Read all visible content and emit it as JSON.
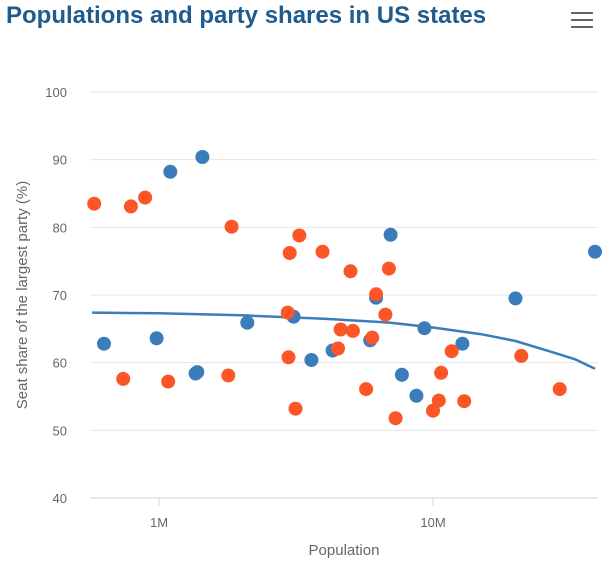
{
  "chart": {
    "title": "Populations and party shares in US states"
  },
  "toolbar": {
    "menu_icon": "hamburger-menu-icon"
  },
  "chart_data": {
    "type": "scatter",
    "title": "Populations and party shares in US states",
    "xlabel": "Population",
    "ylabel": "Seat share of the largest party (%)",
    "x_scale": "log",
    "xlim": [
      560000,
      40000000
    ],
    "ylim": [
      40,
      100
    ],
    "x_ticks": [
      1000000,
      10000000
    ],
    "x_tick_labels": [
      "1M",
      "10M"
    ],
    "y_ticks": [
      40,
      50,
      60,
      70,
      80,
      90,
      100
    ],
    "grid": "horizontal",
    "colors": {
      "blue": "#3a7dba",
      "orange": "#fc5626",
      "trend": "#3a7dba"
    },
    "series": [
      {
        "color": "#3a7dba",
        "points": [
          {
            "x": 630000,
            "y": 62.8
          },
          {
            "x": 980000,
            "y": 63.6
          },
          {
            "x": 1100000,
            "y": 88.2
          },
          {
            "x": 1360000,
            "y": 58.4
          },
          {
            "x": 1380000,
            "y": 58.6
          },
          {
            "x": 1440000,
            "y": 90.4
          },
          {
            "x": 2100000,
            "y": 65.9
          },
          {
            "x": 3100000,
            "y": 66.8
          },
          {
            "x": 3600000,
            "y": 60.4
          },
          {
            "x": 4300000,
            "y": 61.8
          },
          {
            "x": 5900000,
            "y": 63.3
          },
          {
            "x": 6200000,
            "y": 69.6
          },
          {
            "x": 7000000,
            "y": 78.9
          },
          {
            "x": 7700000,
            "y": 58.2
          },
          {
            "x": 8700000,
            "y": 55.1
          },
          {
            "x": 9300000,
            "y": 65.1
          },
          {
            "x": 12800000,
            "y": 62.8
          },
          {
            "x": 20000000,
            "y": 69.5
          },
          {
            "x": 39000000,
            "y": 76.4
          }
        ]
      },
      {
        "color": "#fc5626",
        "points": [
          {
            "x": 580000,
            "y": 83.5
          },
          {
            "x": 740000,
            "y": 57.6
          },
          {
            "x": 790000,
            "y": 83.1
          },
          {
            "x": 890000,
            "y": 84.4
          },
          {
            "x": 1080000,
            "y": 57.2
          },
          {
            "x": 1790000,
            "y": 58.1
          },
          {
            "x": 1840000,
            "y": 80.1
          },
          {
            "x": 2950000,
            "y": 67.4
          },
          {
            "x": 2970000,
            "y": 60.8
          },
          {
            "x": 3000000,
            "y": 76.2
          },
          {
            "x": 3150000,
            "y": 53.2
          },
          {
            "x": 3250000,
            "y": 78.8
          },
          {
            "x": 3950000,
            "y": 76.4
          },
          {
            "x": 4500000,
            "y": 62.1
          },
          {
            "x": 4600000,
            "y": 64.9
          },
          {
            "x": 5000000,
            "y": 73.5
          },
          {
            "x": 5100000,
            "y": 64.7
          },
          {
            "x": 5700000,
            "y": 56.1
          },
          {
            "x": 6000000,
            "y": 63.7
          },
          {
            "x": 6200000,
            "y": 70.1
          },
          {
            "x": 6700000,
            "y": 67.1
          },
          {
            "x": 6900000,
            "y": 73.9
          },
          {
            "x": 7300000,
            "y": 51.8
          },
          {
            "x": 10000000,
            "y": 52.9
          },
          {
            "x": 10500000,
            "y": 54.4
          },
          {
            "x": 10700000,
            "y": 58.5
          },
          {
            "x": 11700000,
            "y": 61.7
          },
          {
            "x": 13000000,
            "y": 54.3
          },
          {
            "x": 21000000,
            "y": 61.0
          },
          {
            "x": 29000000,
            "y": 56.1
          }
        ]
      }
    ],
    "trend_line": [
      {
        "x": 570000,
        "y": 67.4
      },
      {
        "x": 1000000,
        "y": 67.3
      },
      {
        "x": 2000000,
        "y": 67.0
      },
      {
        "x": 4000000,
        "y": 66.5
      },
      {
        "x": 7000000,
        "y": 65.9
      },
      {
        "x": 10000000,
        "y": 65.2
      },
      {
        "x": 15000000,
        "y": 64.2
      },
      {
        "x": 20000000,
        "y": 63.2
      },
      {
        "x": 27000000,
        "y": 61.6
      },
      {
        "x": 33000000,
        "y": 60.5
      },
      {
        "x": 39000000,
        "y": 59.1
      }
    ]
  }
}
